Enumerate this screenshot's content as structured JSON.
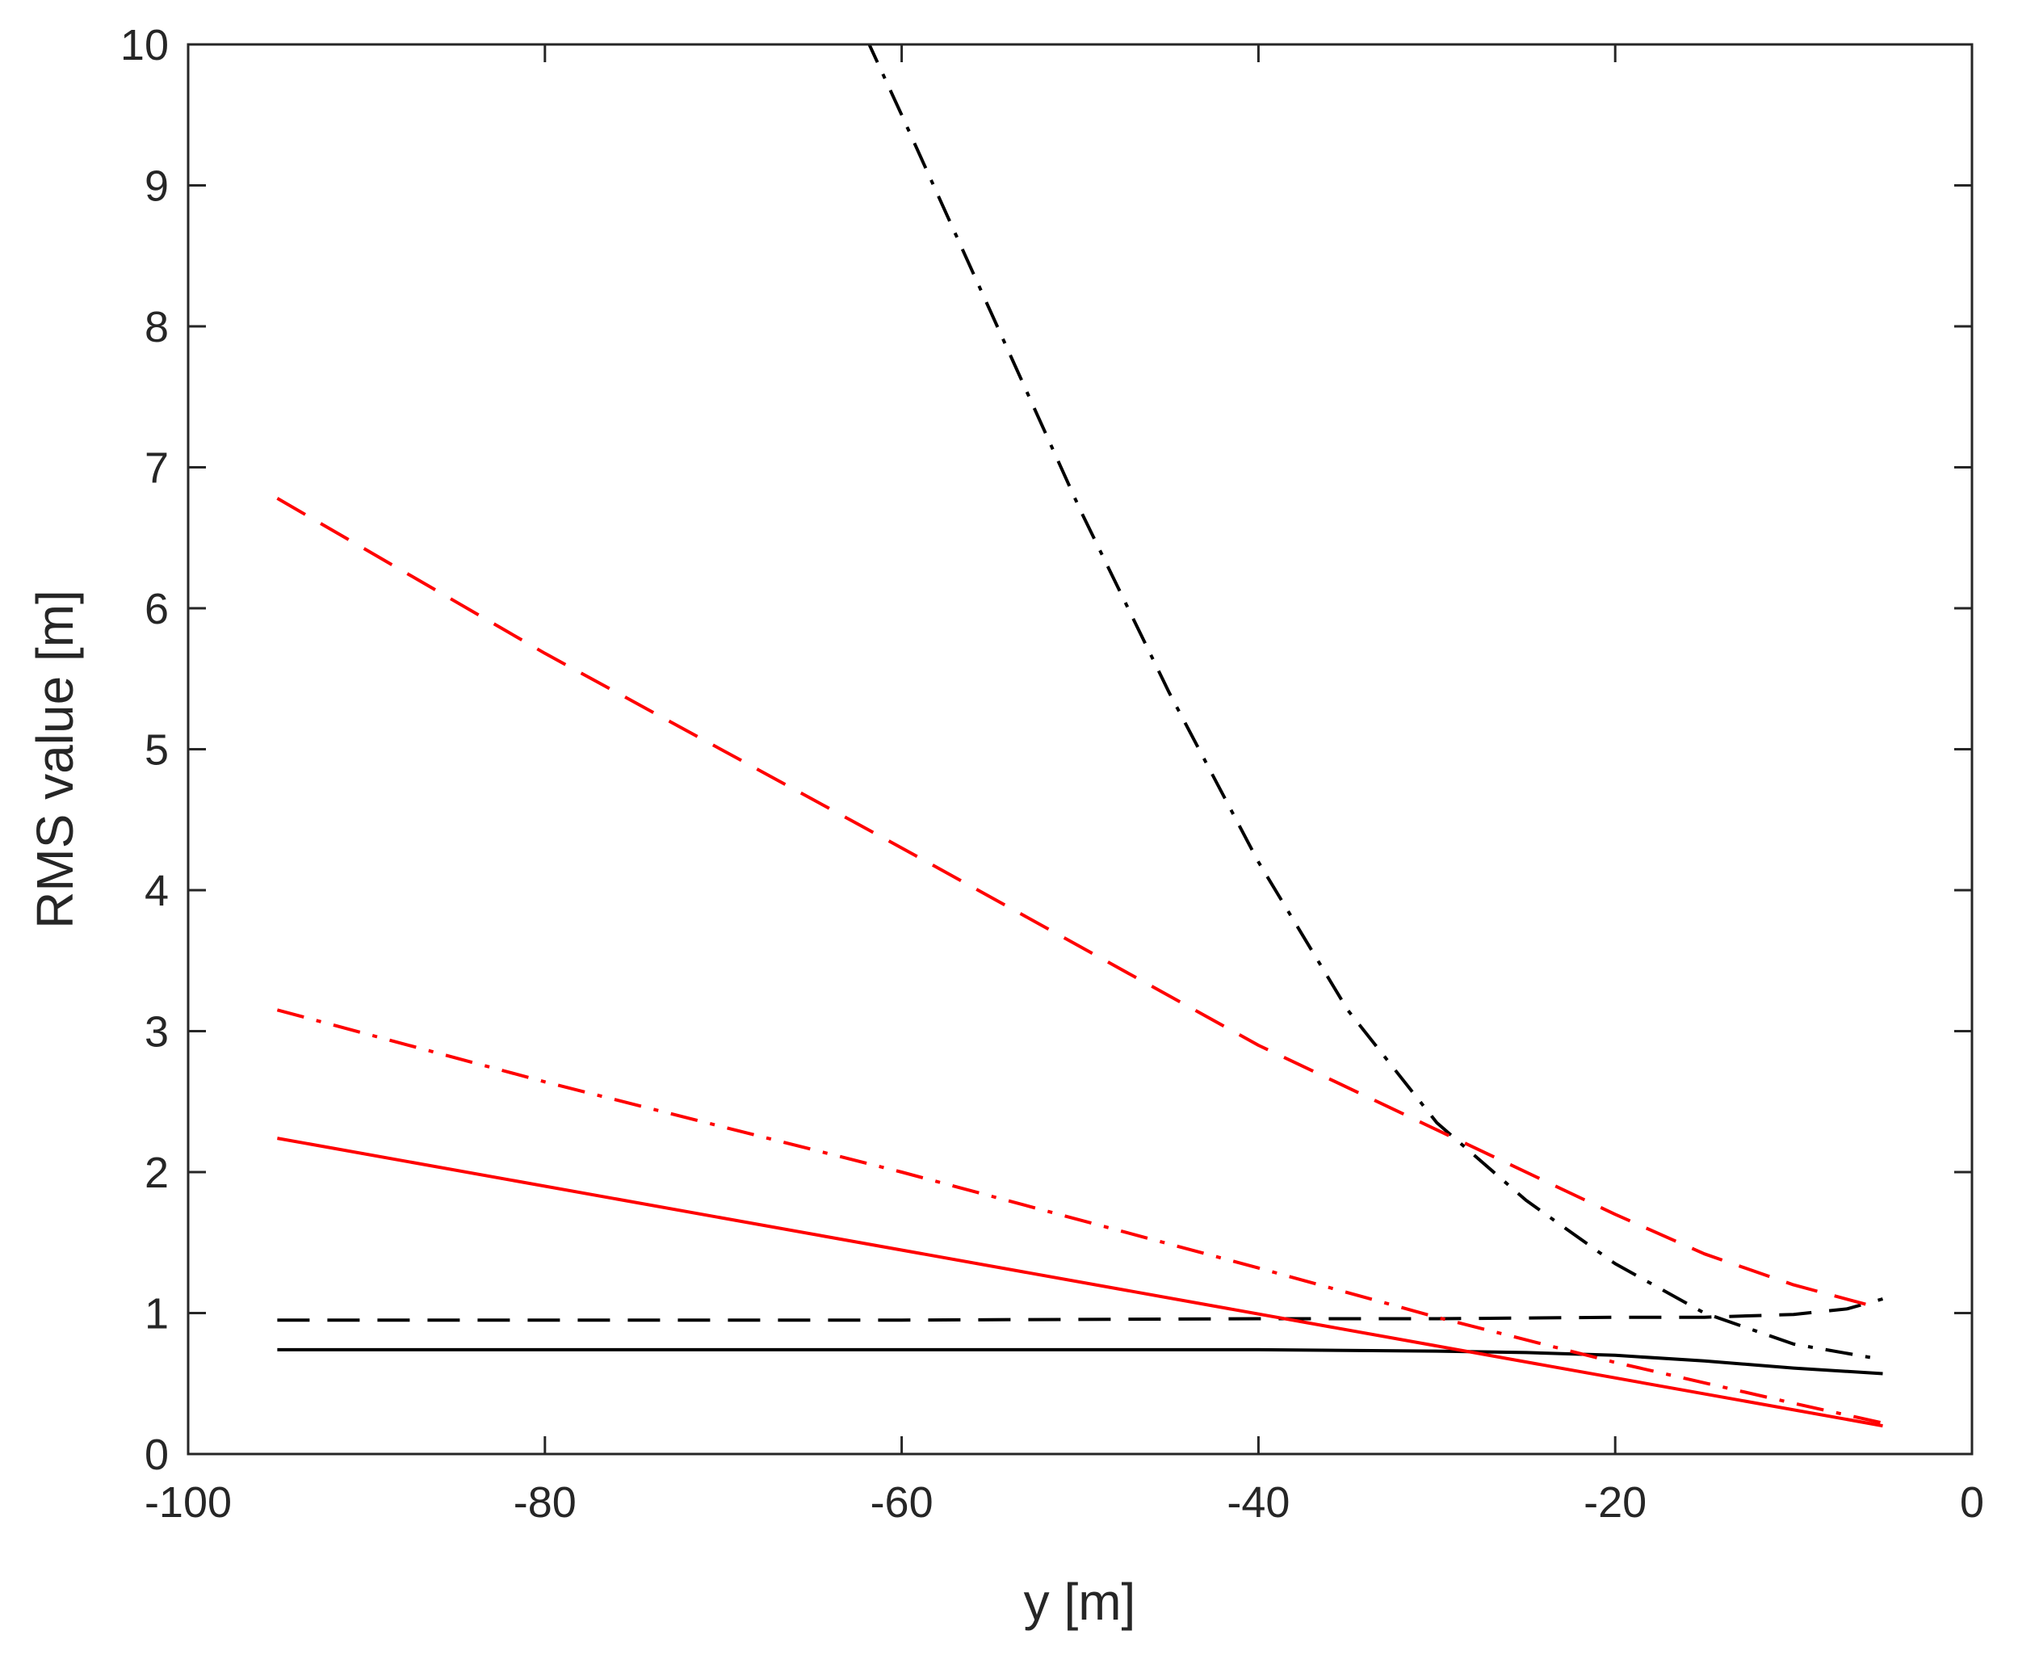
{
  "chart_data": {
    "type": "line",
    "title": "",
    "xlabel": "y [m]",
    "ylabel": "RMS value [m]",
    "xlim": [
      -100,
      0
    ],
    "ylim": [
      0,
      10
    ],
    "xticks": [
      -100,
      -80,
      -60,
      -40,
      -20,
      0
    ],
    "yticks": [
      0,
      1,
      2,
      3,
      4,
      5,
      6,
      7,
      8,
      9,
      10
    ],
    "grid": false,
    "legend": "none",
    "axis_color": "#262626",
    "series": [
      {
        "color": "#000000",
        "style": "solid",
        "x": [
          -95,
          -60,
          -40,
          -30,
          -25,
          -20,
          -15,
          -10,
          -5
        ],
        "y": [
          0.74,
          0.74,
          0.74,
          0.73,
          0.72,
          0.7,
          0.66,
          0.61,
          0.57
        ]
      },
      {
        "color": "#000000",
        "style": "dash",
        "x": [
          -95,
          -60,
          -40,
          -30,
          -20,
          -15,
          -10,
          -7,
          -5
        ],
        "y": [
          0.95,
          0.95,
          0.96,
          0.96,
          0.97,
          0.97,
          0.99,
          1.03,
          1.1
        ]
      },
      {
        "color": "#000000",
        "style": "dashdot",
        "x": [
          -62,
          -60,
          -55,
          -50,
          -45,
          -40,
          -35,
          -30,
          -25,
          -20,
          -15,
          -10,
          -5
        ],
        "y": [
          10.05,
          9.5,
          8.1,
          6.7,
          5.4,
          4.2,
          3.15,
          2.35,
          1.8,
          1.35,
          1.0,
          0.78,
          0.67
        ]
      },
      {
        "color": "#ff0000",
        "style": "solid",
        "x": [
          -95,
          -5
        ],
        "y": [
          2.24,
          0.2
        ]
      },
      {
        "color": "#ff0000",
        "style": "dash",
        "x": [
          -95,
          -80,
          -60,
          -40,
          -30,
          -20,
          -15,
          -10,
          -5
        ],
        "y": [
          6.78,
          5.68,
          4.3,
          2.9,
          2.3,
          1.7,
          1.42,
          1.2,
          1.03
        ]
      },
      {
        "color": "#ff0000",
        "style": "dashdot",
        "x": [
          -95,
          -80,
          -60,
          -40,
          -30,
          -20,
          -10,
          -5
        ],
        "y": [
          3.15,
          2.64,
          2.0,
          1.32,
          0.97,
          0.65,
          0.36,
          0.22
        ]
      }
    ]
  }
}
